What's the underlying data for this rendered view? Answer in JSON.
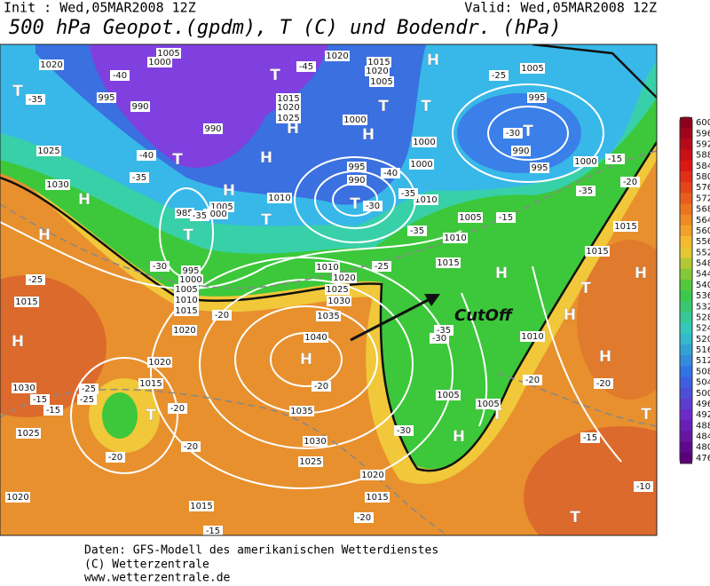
{
  "header": {
    "init": "Init : Wed,05MAR2008 12Z",
    "valid": "Valid: Wed,05MAR2008 12Z",
    "title": "500 hPa Geopot.(gpdm), T (C) und Bodendr. (hPa)"
  },
  "map": {
    "annotation": "CutOff",
    "pressure_centers": [
      "H",
      "H",
      "H",
      "H",
      "H",
      "H",
      "H",
      "H",
      "H",
      "H",
      "H",
      "H",
      "H",
      "H",
      "T",
      "T",
      "T",
      "T",
      "T",
      "T",
      "T",
      "T",
      "T",
      "T",
      "T",
      "T",
      "T",
      "T"
    ],
    "isobar_labels": [
      1020,
      1025,
      1030,
      995,
      1000,
      1005,
      990,
      990,
      985,
      995,
      1000,
      1005,
      1010,
      1015,
      1020,
      1015,
      1020,
      1005,
      1015,
      1020,
      1025,
      1000,
      1000,
      1000,
      995,
      990,
      1010,
      1005,
      1000,
      1010,
      1020,
      1025,
      1030,
      1035,
      1040,
      1035,
      1030,
      1025,
      1010,
      1015,
      1005,
      1020,
      1015,
      1030,
      1025,
      1020,
      1015,
      1020,
      1015,
      1005,
      1005,
      1010,
      1015,
      1015,
      1020,
      1005,
      995,
      990,
      995,
      1000,
      1015,
      1010
    ],
    "temperature_labels": [
      -40,
      -35,
      -40,
      -35,
      -30,
      -25,
      -45,
      -35,
      -40,
      -35,
      -35,
      -30,
      -25,
      -20,
      -20,
      -25,
      -15,
      -20,
      -35,
      -30,
      -30,
      -20,
      -20,
      -15,
      -15,
      -20,
      -20,
      -15,
      -10,
      -25,
      -30,
      -35,
      -15,
      -20,
      -25,
      -15,
      -20
    ]
  },
  "colorbar": {
    "levels": [
      600,
      596,
      592,
      588,
      584,
      580,
      576,
      572,
      568,
      564,
      560,
      556,
      552,
      548,
      544,
      540,
      536,
      532,
      528,
      524,
      520,
      516,
      512,
      508,
      504,
      500,
      496,
      492,
      488,
      484,
      480,
      476
    ]
  },
  "footer": {
    "source": "Daten: GFS-Modell des amerikanischen Wetterdienstes",
    "copyright": "(C) Wetterzentrale",
    "url": "www.wetterzentrale.de"
  }
}
